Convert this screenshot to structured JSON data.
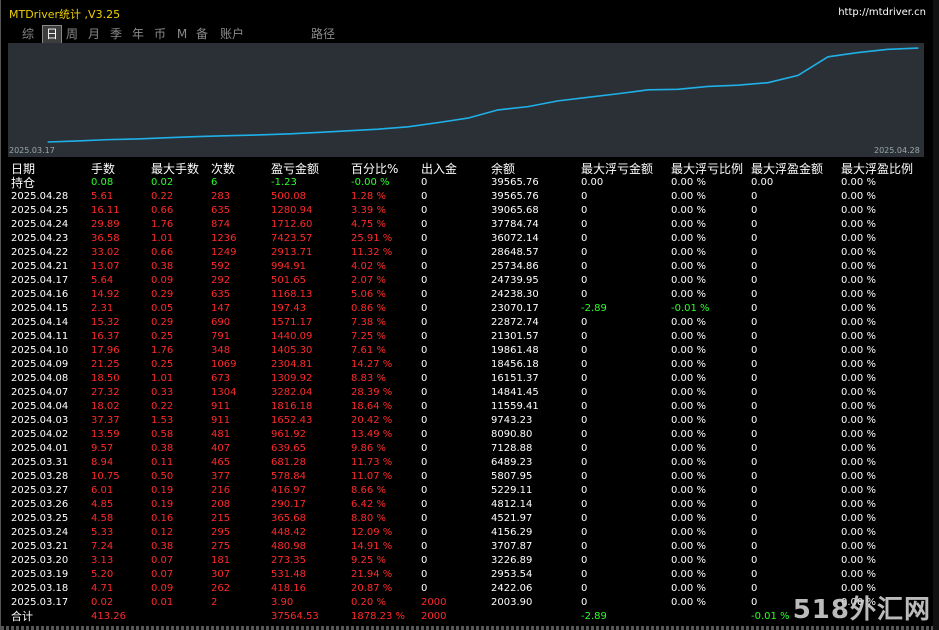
{
  "window": {
    "title": "MTDriver统计 ,V3.25",
    "url": "http://mtdriver.cn"
  },
  "tabs": [
    "综",
    "日",
    "周",
    "月",
    "季",
    "年",
    "币",
    "M",
    "备",
    "账户",
    "路径"
  ],
  "active_tab": "日",
  "chart": {
    "start_label": "2025.03.17",
    "end_label": "2025.04.28",
    "line_color": "#1fb0e8",
    "values": [
      2003.9,
      2422.06,
      2953.54,
      3226.89,
      3707.87,
      4156.29,
      4521.97,
      4812.14,
      5229.11,
      5807.95,
      6489.23,
      7128.88,
      8090.8,
      9743.23,
      11559.41,
      14841.45,
      16151.37,
      18456.18,
      19861.48,
      21301.57,
      22872.74,
      23070.17,
      24238.3,
      24739.95,
      25734.86,
      28648.57,
      36072.14,
      37784.74,
      39065.68,
      39565.76
    ]
  },
  "table": {
    "headers": [
      "日期",
      "手数",
      "最大手数",
      "次数",
      "盈亏金额",
      "百分比%",
      "出入金",
      "余额",
      "最大浮亏金额",
      "最大浮亏比例",
      "最大浮盈金额",
      "最大浮盈比例"
    ],
    "holding": [
      "持仓",
      "0.08",
      "0.02",
      "6",
      "-1.23",
      "-0.00 %",
      "0",
      "39565.76",
      "0.00",
      "0.00 %",
      "0.00",
      "0.00 %"
    ],
    "rows": [
      [
        "2025.04.28",
        "5.61",
        "0.22",
        "283",
        "500.08",
        "1.28 %",
        "0",
        "39565.76",
        "0",
        "0.00 %",
        "0",
        "0.00 %"
      ],
      [
        "2025.04.25",
        "16.11",
        "0.66",
        "635",
        "1280.94",
        "3.39 %",
        "0",
        "39065.68",
        "0",
        "0.00 %",
        "0",
        "0.00 %"
      ],
      [
        "2025.04.24",
        "29.89",
        "1.76",
        "874",
        "1712.60",
        "4.75 %",
        "0",
        "37784.74",
        "0",
        "0.00 %",
        "0",
        "0.00 %"
      ],
      [
        "2025.04.23",
        "36.58",
        "1.01",
        "1236",
        "7423.57",
        "25.91 %",
        "0",
        "36072.14",
        "0",
        "0.00 %",
        "0",
        "0.00 %"
      ],
      [
        "2025.04.22",
        "33.02",
        "0.66",
        "1249",
        "2913.71",
        "11.32 %",
        "0",
        "28648.57",
        "0",
        "0.00 %",
        "0",
        "0.00 %"
      ],
      [
        "2025.04.21",
        "13.07",
        "0.38",
        "592",
        "994.91",
        "4.02 %",
        "0",
        "25734.86",
        "0",
        "0.00 %",
        "0",
        "0.00 %"
      ],
      [
        "2025.04.17",
        "5.64",
        "0.09",
        "292",
        "501.65",
        "2.07 %",
        "0",
        "24739.95",
        "0",
        "0.00 %",
        "0",
        "0.00 %"
      ],
      [
        "2025.04.16",
        "14.92",
        "0.29",
        "635",
        "1168.13",
        "5.06 %",
        "0",
        "24238.30",
        "0",
        "0.00 %",
        "0",
        "0.00 %"
      ],
      [
        "2025.04.15",
        "2.31",
        "0.05",
        "147",
        "197.43",
        "0.86 %",
        "0",
        "23070.17",
        "-2.89",
        "-0.01 %",
        "0",
        "0.00 %"
      ],
      [
        "2025.04.14",
        "15.32",
        "0.29",
        "690",
        "1571.17",
        "7.38 %",
        "0",
        "22872.74",
        "0",
        "0.00 %",
        "0",
        "0.00 %"
      ],
      [
        "2025.04.11",
        "16.37",
        "0.25",
        "791",
        "1440.09",
        "7.25 %",
        "0",
        "21301.57",
        "0",
        "0.00 %",
        "0",
        "0.00 %"
      ],
      [
        "2025.04.10",
        "17.96",
        "1.76",
        "348",
        "1405.30",
        "7.61 %",
        "0",
        "19861.48",
        "0",
        "0.00 %",
        "0",
        "0.00 %"
      ],
      [
        "2025.04.09",
        "21.25",
        "0.25",
        "1069",
        "2304.81",
        "14.27 %",
        "0",
        "18456.18",
        "0",
        "0.00 %",
        "0",
        "0.00 %"
      ],
      [
        "2025.04.08",
        "18.50",
        "1.01",
        "673",
        "1309.92",
        "8.83 %",
        "0",
        "16151.37",
        "0",
        "0.00 %",
        "0",
        "0.00 %"
      ],
      [
        "2025.04.07",
        "27.32",
        "0.33",
        "1304",
        "3282.04",
        "28.39 %",
        "0",
        "14841.45",
        "0",
        "0.00 %",
        "0",
        "0.00 %"
      ],
      [
        "2025.04.04",
        "18.02",
        "0.22",
        "911",
        "1816.18",
        "18.64 %",
        "0",
        "11559.41",
        "0",
        "0.00 %",
        "0",
        "0.00 %"
      ],
      [
        "2025.04.03",
        "37.37",
        "1.53",
        "911",
        "1652.43",
        "20.42 %",
        "0",
        "9743.23",
        "0",
        "0.00 %",
        "0",
        "0.00 %"
      ],
      [
        "2025.04.02",
        "13.59",
        "0.58",
        "481",
        "961.92",
        "13.49 %",
        "0",
        "8090.80",
        "0",
        "0.00 %",
        "0",
        "0.00 %"
      ],
      [
        "2025.04.01",
        "9.57",
        "0.38",
        "407",
        "639.65",
        "9.86 %",
        "0",
        "7128.88",
        "0",
        "0.00 %",
        "0",
        "0.00 %"
      ],
      [
        "2025.03.31",
        "8.94",
        "0.11",
        "465",
        "681.28",
        "11.73 %",
        "0",
        "6489.23",
        "0",
        "0.00 %",
        "0",
        "0.00 %"
      ],
      [
        "2025.03.28",
        "10.75",
        "0.50",
        "377",
        "578.84",
        "11.07 %",
        "0",
        "5807.95",
        "0",
        "0.00 %",
        "0",
        "0.00 %"
      ],
      [
        "2025.03.27",
        "6.01",
        "0.19",
        "216",
        "416.97",
        "8.66 %",
        "0",
        "5229.11",
        "0",
        "0.00 %",
        "0",
        "0.00 %"
      ],
      [
        "2025.03.26",
        "4.85",
        "0.19",
        "208",
        "290.17",
        "6.42 %",
        "0",
        "4812.14",
        "0",
        "0.00 %",
        "0",
        "0.00 %"
      ],
      [
        "2025.03.25",
        "4.58",
        "0.16",
        "215",
        "365.68",
        "8.80 %",
        "0",
        "4521.97",
        "0",
        "0.00 %",
        "0",
        "0.00 %"
      ],
      [
        "2025.03.24",
        "5.33",
        "0.12",
        "295",
        "448.42",
        "12.09 %",
        "0",
        "4156.29",
        "0",
        "0.00 %",
        "0",
        "0.00 %"
      ],
      [
        "2025.03.21",
        "7.24",
        "0.38",
        "275",
        "480.98",
        "14.91 %",
        "0",
        "3707.87",
        "0",
        "0.00 %",
        "0",
        "0.00 %"
      ],
      [
        "2025.03.20",
        "3.13",
        "0.07",
        "181",
        "273.35",
        "9.25 %",
        "0",
        "3226.89",
        "0",
        "0.00 %",
        "0",
        "0.00 %"
      ],
      [
        "2025.03.19",
        "5.20",
        "0.07",
        "307",
        "531.48",
        "21.94 %",
        "0",
        "2953.54",
        "0",
        "0.00 %",
        "0",
        "0.00 %"
      ],
      [
        "2025.03.18",
        "4.71",
        "0.09",
        "262",
        "418.16",
        "20.87 %",
        "0",
        "2422.06",
        "0",
        "0.00 %",
        "0",
        "0.00 %"
      ],
      [
        "2025.03.17",
        "0.02",
        "0.01",
        "2",
        "3.90",
        "0.20 %",
        "2000",
        "2003.90",
        "0",
        "0.00 %",
        "0",
        "0.00 %"
      ]
    ],
    "total": [
      "合计",
      "413.26",
      "",
      "",
      "37564.53",
      "1878.23 %",
      "2000",
      "",
      "-2.89",
      "",
      "-0.01 %",
      ""
    ]
  },
  "watermark": "518外汇网"
}
